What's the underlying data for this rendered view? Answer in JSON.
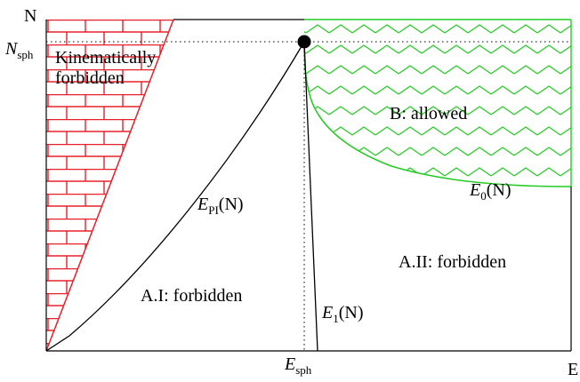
{
  "axes": {
    "y_label": "N",
    "x_label": "E",
    "n_sph": {
      "main": "N",
      "sub": "sph"
    },
    "e_sph": {
      "main": "E",
      "sub": "sph"
    }
  },
  "regions": {
    "kinematic_line1": "Kinematically",
    "kinematic_line2": "forbidden",
    "allowed": "B: allowed",
    "forbidden_left": "A.I: forbidden",
    "forbidden_right": "A.II: forbidden"
  },
  "curves": {
    "e_pi": {
      "main": "E",
      "sub": "PI",
      "arg": "(N)"
    },
    "e0": {
      "main": "E",
      "sub": "0",
      "arg": "(N)"
    },
    "e1": {
      "main": "E",
      "sub": "1",
      "arg": "(N)"
    }
  },
  "colors": {
    "forbidden_hatch": "#e8202a",
    "allowed_hatch": "#22cc22",
    "line": "#000000"
  }
}
